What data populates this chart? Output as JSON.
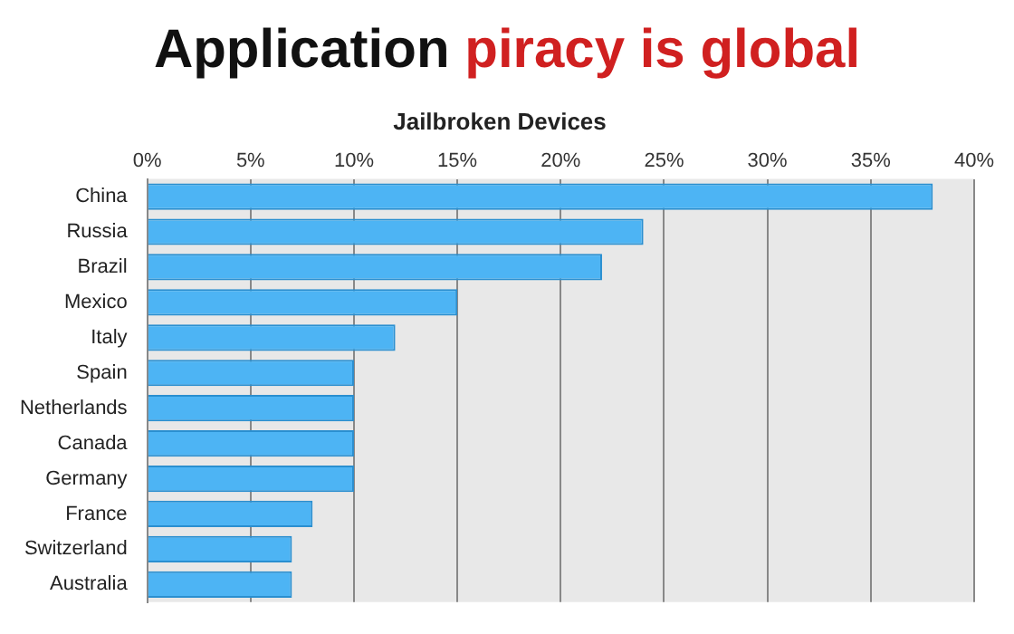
{
  "chart_data": {
    "type": "bar",
    "orientation": "horizontal",
    "title": "Application piracy is global",
    "subtitle": "Jailbroken Devices",
    "categories": [
      "China",
      "Russia",
      "Brazil",
      "Mexico",
      "Italy",
      "Spain",
      "Netherlands",
      "Canada",
      "Germany",
      "France",
      "Switzerland",
      "Australia"
    ],
    "values": [
      38,
      24,
      22,
      15,
      12,
      10,
      10,
      10,
      10,
      8,
      7,
      7
    ],
    "color": "#4db4f4",
    "xlim": [
      0,
      40
    ],
    "xticks": [
      {
        "value": 0,
        "label": "0%"
      },
      {
        "value": 5,
        "label": "5%"
      },
      {
        "value": 10,
        "label": "10%"
      },
      {
        "value": 15,
        "label": "15%"
      },
      {
        "value": 20,
        "label": "20%"
      },
      {
        "value": 25,
        "label": "25%"
      },
      {
        "value": 30,
        "label": "30%"
      },
      {
        "value": 35,
        "label": "35%"
      },
      {
        "value": 40,
        "label": "40%"
      }
    ],
    "grid": "x",
    "legend": false
  }
}
